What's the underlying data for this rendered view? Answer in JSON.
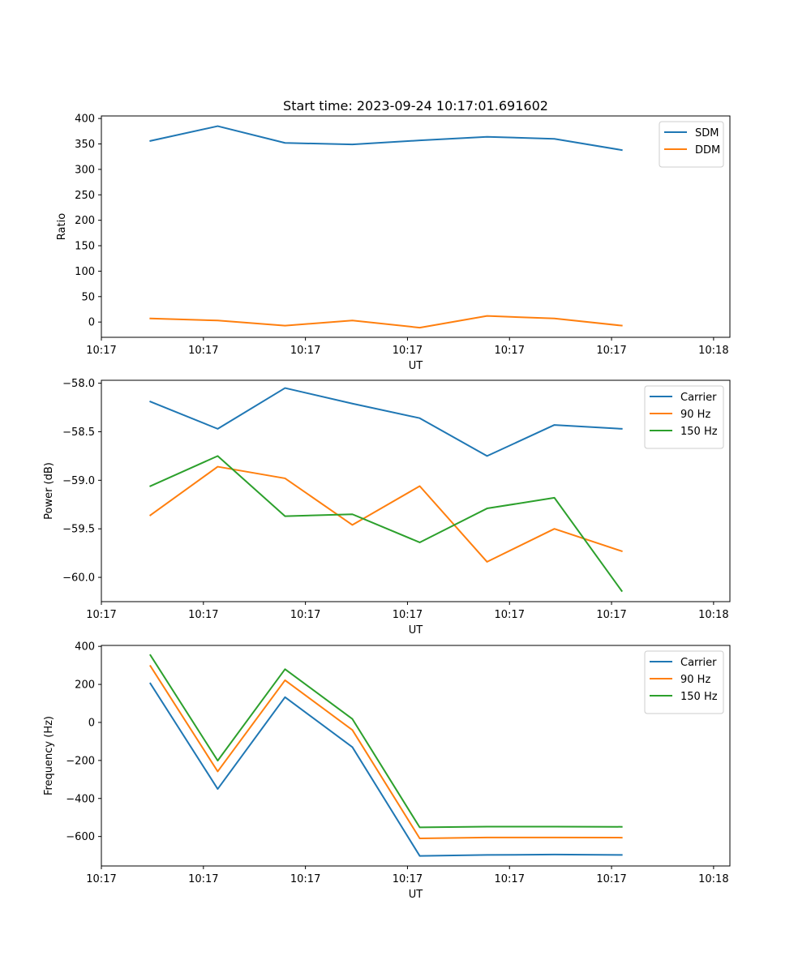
{
  "figure_title": "Start time: 2023-09-24 10:17:01.691602",
  "chart_data": [
    {
      "type": "line",
      "title": "Start time: 2023-09-24 10:17:01.691602",
      "xlabel": "UT",
      "ylabel": "Ratio",
      "xlim": [
        -0.48,
        5.68
      ],
      "ylim": [
        -30,
        405
      ],
      "x_ticks": [
        -0.48,
        0.52,
        1.52,
        2.52,
        3.52,
        4.52,
        5.52
      ],
      "x_tick_labels": [
        "10:17",
        "10:17",
        "10:17",
        "10:17",
        "10:17",
        "10:17",
        "10:18"
      ],
      "y_ticks": [
        0,
        50,
        100,
        150,
        200,
        250,
        300,
        350,
        400
      ],
      "y_tick_labels": [
        "0",
        "50",
        "100",
        "150",
        "200",
        "250",
        "300",
        "350",
        "400"
      ],
      "legend": "top-right",
      "x": [
        0,
        0.66,
        1.32,
        1.98,
        2.64,
        3.3,
        3.96,
        4.62
      ],
      "series": [
        {
          "name": "SDM",
          "color": "#1f77b4",
          "values": [
            356,
            385,
            352,
            349,
            357,
            364,
            360,
            338
          ]
        },
        {
          "name": "DDM",
          "color": "#ff7f0e",
          "values": [
            7,
            3,
            -7,
            3,
            -11,
            12,
            7,
            -7
          ]
        }
      ]
    },
    {
      "type": "line",
      "title": "",
      "xlabel": "UT",
      "ylabel": "Power (dB)",
      "xlim": [
        -0.48,
        5.68
      ],
      "ylim": [
        -60.25,
        -57.97
      ],
      "x_ticks": [
        -0.48,
        0.52,
        1.52,
        2.52,
        3.52,
        4.52,
        5.52
      ],
      "x_tick_labels": [
        "10:17",
        "10:17",
        "10:17",
        "10:17",
        "10:17",
        "10:17",
        "10:18"
      ],
      "y_ticks": [
        -60.0,
        -59.5,
        -59.0,
        -58.5,
        -58.0
      ],
      "y_tick_labels": [
        "−60.0",
        "−59.5",
        "−59.0",
        "−58.5",
        "−58.0"
      ],
      "legend": "top-right",
      "x": [
        0,
        0.66,
        1.32,
        1.98,
        2.64,
        3.3,
        3.96,
        4.62
      ],
      "series": [
        {
          "name": "Carrier",
          "color": "#1f77b4",
          "values": [
            -58.19,
            -58.47,
            -58.05,
            -58.21,
            -58.36,
            -58.75,
            -58.43,
            -58.47
          ]
        },
        {
          "name": "90 Hz",
          "color": "#ff7f0e",
          "values": [
            -59.36,
            -58.86,
            -58.98,
            -59.46,
            -59.06,
            -59.84,
            -59.5,
            -59.73
          ]
        },
        {
          "name": "150 Hz",
          "color": "#2ca02c",
          "values": [
            -59.06,
            -58.75,
            -59.37,
            -59.35,
            -59.64,
            -59.29,
            -59.18,
            -60.14
          ]
        }
      ]
    },
    {
      "type": "line",
      "title": "",
      "xlabel": "UT",
      "ylabel": "Frequency (Hz)",
      "xlim": [
        -0.48,
        5.68
      ],
      "ylim": [
        -755,
        405
      ],
      "x_ticks": [
        -0.48,
        0.52,
        1.52,
        2.52,
        3.52,
        4.52,
        5.52
      ],
      "x_tick_labels": [
        "10:17",
        "10:17",
        "10:17",
        "10:17",
        "10:17",
        "10:17",
        "10:18"
      ],
      "y_ticks": [
        -600,
        -400,
        -200,
        0,
        200,
        400
      ],
      "y_tick_labels": [
        "−600",
        "−400",
        "−200",
        "0",
        "200",
        "400"
      ],
      "legend": "top-right",
      "x": [
        0,
        0.66,
        1.32,
        1.98,
        2.64,
        3.3,
        3.96,
        4.62
      ],
      "series": [
        {
          "name": "Carrier",
          "color": "#1f77b4",
          "values": [
            205,
            -350,
            133,
            -130,
            -702,
            -697,
            -695,
            -697
          ]
        },
        {
          "name": "90 Hz",
          "color": "#ff7f0e",
          "values": [
            297,
            -258,
            222,
            -40,
            -610,
            -605,
            -605,
            -606
          ]
        },
        {
          "name": "150 Hz",
          "color": "#2ca02c",
          "values": [
            354,
            -201,
            280,
            18,
            -552,
            -548,
            -548,
            -549
          ]
        }
      ]
    }
  ]
}
